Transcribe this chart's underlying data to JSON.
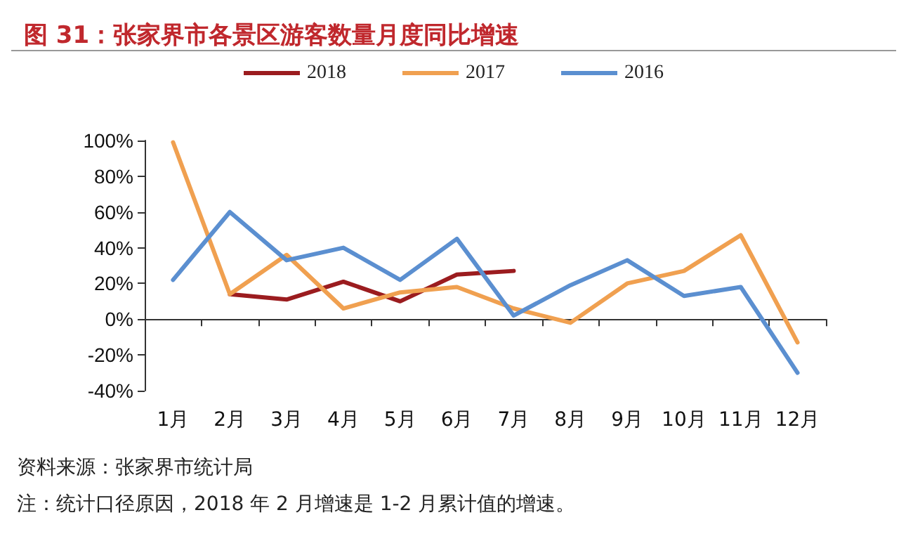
{
  "chart_data": {
    "type": "line",
    "title": "图 31：张家界市各景区游客数量月度同比增速",
    "categories": [
      "1月",
      "2月",
      "3月",
      "4月",
      "5月",
      "6月",
      "7月",
      "8月",
      "9月",
      "10月",
      "11月",
      "12月"
    ],
    "series": [
      {
        "name": "2018",
        "color": "#9b1c1f",
        "values": [
          null,
          14,
          11,
          21,
          10,
          25,
          27,
          null,
          null,
          null,
          null,
          null
        ]
      },
      {
        "name": "2017",
        "color": "#f0a050",
        "values": [
          99,
          14,
          36,
          6,
          15,
          18,
          6,
          -2,
          20,
          27,
          47,
          -13
        ]
      },
      {
        "name": "2016",
        "color": "#5b8fd0",
        "values": [
          22,
          60,
          33,
          40,
          22,
          45,
          2,
          19,
          33,
          13,
          18,
          -30
        ]
      }
    ],
    "ylim": [
      -40,
      100
    ],
    "yticks": [
      {
        "value": -40,
        "label": "-40%"
      },
      {
        "value": -20,
        "label": "-20%"
      },
      {
        "value": 0,
        "label": "0%"
      },
      {
        "value": 20,
        "label": "20%"
      },
      {
        "value": 40,
        "label": "40%"
      },
      {
        "value": 60,
        "label": "60%"
      },
      {
        "value": 80,
        "label": "80%"
      },
      {
        "value": 100,
        "label": "100%"
      }
    ],
    "legend": "top",
    "marker": "none",
    "line_style": "solid",
    "annotations": [
      "资料来源：张家界市统计局",
      "注：统计口径原因，2018 年 2 月增速是 1-2 月累计值的增速。"
    ]
  }
}
